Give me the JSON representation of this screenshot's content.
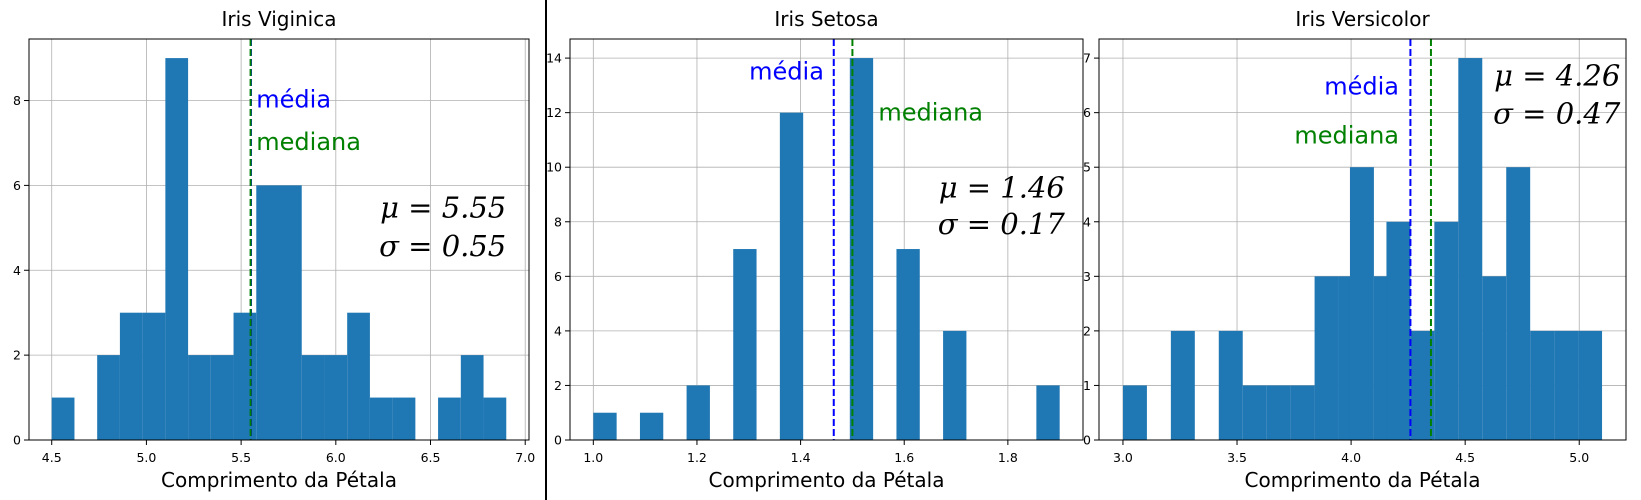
{
  "colors": {
    "bar": "#1f77b4",
    "mean_line": "#0000ff",
    "median_line": "#008000",
    "grid": "#b0b0b0"
  },
  "chart_data": [
    {
      "type": "bar",
      "title": "Iris Viginica",
      "xlabel": "Comprimento da Pétala",
      "xlim": [
        4.38,
        7.02
      ],
      "ylim": [
        0,
        9.45
      ],
      "xticks": [
        4.5,
        5.0,
        5.5,
        6.0,
        6.5,
        7.0
      ],
      "xtick_labels": [
        "4.5",
        "5.0",
        "5.5",
        "6.0",
        "6.5",
        "7.0"
      ],
      "yticks": [
        0,
        2,
        4,
        6,
        8
      ],
      "ytick_labels": [
        "0",
        "2",
        "4",
        "6",
        "8"
      ],
      "bin_width": 0.12,
      "bins": [
        {
          "x": 4.5,
          "count": 1
        },
        {
          "x": 4.74,
          "count": 2
        },
        {
          "x": 4.86,
          "count": 3
        },
        {
          "x": 4.98,
          "count": 3
        },
        {
          "x": 5.1,
          "count": 9
        },
        {
          "x": 5.22,
          "count": 2
        },
        {
          "x": 5.34,
          "count": 2
        },
        {
          "x": 5.46,
          "count": 3
        },
        {
          "x": 5.58,
          "count": 6
        },
        {
          "x": 5.7,
          "count": 6
        },
        {
          "x": 5.82,
          "count": 2
        },
        {
          "x": 5.94,
          "count": 2
        },
        {
          "x": 6.06,
          "count": 3
        },
        {
          "x": 6.18,
          "count": 1
        },
        {
          "x": 6.3,
          "count": 1
        },
        {
          "x": 6.54,
          "count": 1
        },
        {
          "x": 6.66,
          "count": 2
        },
        {
          "x": 6.78,
          "count": 1
        }
      ],
      "mean": 5.552,
      "median": 5.55,
      "mean_label": "média",
      "median_label": "mediana",
      "mean_label_pos": {
        "x": 5.58,
        "y": 8.05,
        "anchor": "start"
      },
      "median_label_pos": {
        "x": 5.58,
        "y": 7.05,
        "anchor": "start"
      },
      "stats": {
        "mu": "5.55",
        "sigma": "0.55"
      },
      "stats_pos": {
        "x": 6.9,
        "y1": 5.5,
        "y2": 4.6
      }
    },
    {
      "type": "bar",
      "title": "Iris Setosa",
      "xlabel": "Comprimento da Pétala",
      "xlim": [
        0.955,
        1.945
      ],
      "ylim": [
        0,
        14.7
      ],
      "xticks": [
        1.0,
        1.2,
        1.4,
        1.6,
        1.8
      ],
      "xtick_labels": [
        "1.0",
        "1.2",
        "1.4",
        "1.6",
        "1.8"
      ],
      "yticks": [
        0,
        2,
        4,
        6,
        8,
        10,
        12,
        14
      ],
      "ytick_labels": [
        "0",
        "2",
        "4",
        "6",
        "8",
        "10",
        "12",
        "14"
      ],
      "bin_width": 0.045,
      "bins": [
        {
          "x": 1.0,
          "count": 1
        },
        {
          "x": 1.09,
          "count": 1
        },
        {
          "x": 1.18,
          "count": 2
        },
        {
          "x": 1.27,
          "count": 7
        },
        {
          "x": 1.36,
          "count": 12
        },
        {
          "x": 1.495,
          "count": 14
        },
        {
          "x": 1.585,
          "count": 7
        },
        {
          "x": 1.675,
          "count": 4
        },
        {
          "x": 1.855,
          "count": 2
        }
      ],
      "mean": 1.464,
      "median": 1.5,
      "mean_label": "média",
      "median_label": "mediana",
      "mean_label_pos": {
        "x": 1.445,
        "y": 13.55,
        "anchor": "end"
      },
      "median_label_pos": {
        "x": 1.55,
        "y": 12.05,
        "anchor": "start"
      },
      "stats": {
        "mu": "1.46",
        "sigma": "0.17"
      },
      "stats_pos": {
        "x": 1.91,
        "y1": 9.3,
        "y2": 7.95
      }
    },
    {
      "type": "bar",
      "title": "Iris Versicolor",
      "xlabel": "Comprimento da Pétala",
      "xlim": [
        2.895,
        5.205
      ],
      "ylim": [
        0,
        7.35
      ],
      "xticks": [
        3.0,
        3.5,
        4.0,
        4.5,
        5.0
      ],
      "xtick_labels": [
        "3.0",
        "3.5",
        "4.0",
        "4.5",
        "5.0"
      ],
      "yticks": [
        0,
        1,
        2,
        3,
        4,
        5,
        6,
        7
      ],
      "ytick_labels": [
        "0",
        "1",
        "2",
        "3",
        "4",
        "5",
        "6",
        "7"
      ],
      "bin_width": 0.105,
      "bins": [
        {
          "x": 3.0,
          "count": 1
        },
        {
          "x": 3.21,
          "count": 2
        },
        {
          "x": 3.42,
          "count": 2
        },
        {
          "x": 3.525,
          "count": 1
        },
        {
          "x": 3.63,
          "count": 1
        },
        {
          "x": 3.735,
          "count": 1
        },
        {
          "x": 3.84,
          "count": 3
        },
        {
          "x": 3.945,
          "count": 3
        },
        {
          "x": 3.995,
          "count": 5
        },
        {
          "x": 4.1,
          "count": 3
        },
        {
          "x": 4.155,
          "count": 4
        },
        {
          "x": 4.26,
          "count": 2
        },
        {
          "x": 4.365,
          "count": 4
        },
        {
          "x": 4.47,
          "count": 7
        },
        {
          "x": 4.575,
          "count": 3
        },
        {
          "x": 4.68,
          "count": 5
        },
        {
          "x": 4.785,
          "count": 2
        },
        {
          "x": 4.89,
          "count": 2
        },
        {
          "x": 4.995,
          "count": 2
        }
      ],
      "mean": 4.26,
      "median": 4.35,
      "mean_label": "média",
      "median_label": "mediana",
      "mean_label_pos": {
        "x": 4.21,
        "y": 6.5,
        "anchor": "end"
      },
      "median_label_pos": {
        "x": 4.21,
        "y": 5.6,
        "anchor": "end"
      },
      "stats": {
        "mu": "4.26",
        "sigma": "0.47"
      },
      "stats_pos": {
        "x": 5.18,
        "y1": 6.7,
        "y2": 6.0
      }
    }
  ]
}
